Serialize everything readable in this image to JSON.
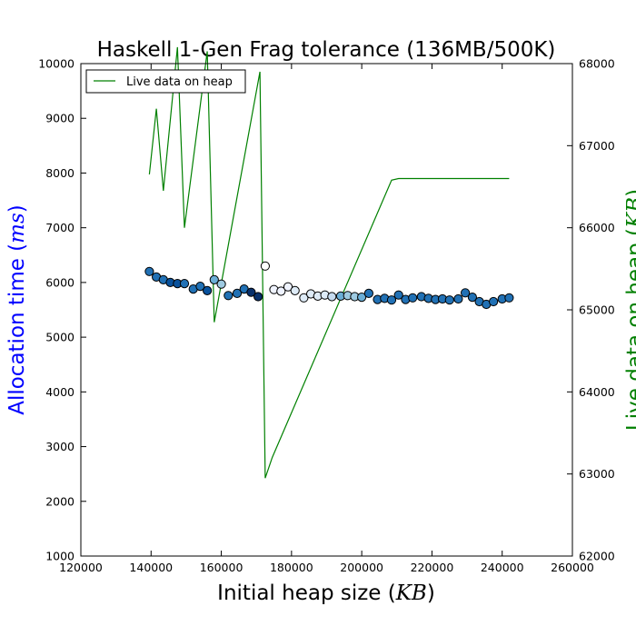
{
  "chart_data": {
    "type": "scatter",
    "title": "Haskell 1-Gen Frag tolerance (136MB/500K)",
    "xlabel": {
      "text": "Initial heap size (",
      "unit": "KB",
      "close": ")"
    },
    "ylabel_left": {
      "text": "Allocation time (",
      "unit": "ms",
      "close": ")",
      "color": "#0000ff"
    },
    "ylabel_right": {
      "text": "Live data on heap (",
      "unit": "KB",
      "close": ")",
      "color": "#007f00"
    },
    "xlim": [
      120000,
      260000
    ],
    "ylim_left": [
      1000,
      10000
    ],
    "ylim_right": [
      62000,
      68000
    ],
    "x_ticks": [
      120000,
      140000,
      160000,
      180000,
      200000,
      220000,
      240000,
      260000
    ],
    "x_tick_labels": [
      "120000",
      "140000",
      "160000",
      "180000",
      "200000",
      "220000",
      "240000",
      "260000"
    ],
    "y_left_ticks": [
      1000,
      2000,
      3000,
      4000,
      5000,
      6000,
      7000,
      8000,
      9000,
      10000
    ],
    "y_left_tick_labels": [
      "1000",
      "2000",
      "3000",
      "4000",
      "5000",
      "6000",
      "7000",
      "8000",
      "9000",
      "10000"
    ],
    "y_right_ticks": [
      62000,
      63000,
      64000,
      65000,
      66000,
      67000,
      68000
    ],
    "y_right_tick_labels": [
      "62000",
      "63000",
      "64000",
      "65000",
      "66000",
      "67000",
      "68000"
    ],
    "grid": false,
    "legend": {
      "position": "top-left",
      "entries": [
        "Live data on heap"
      ]
    },
    "line_color": "#008000",
    "scatter_series": {
      "axis": "left",
      "points": [
        {
          "x": 139500,
          "y": 6200,
          "color": "#2171b5"
        },
        {
          "x": 141500,
          "y": 6100,
          "color": "#2171b5"
        },
        {
          "x": 143500,
          "y": 6050,
          "color": "#2171b5"
        },
        {
          "x": 145500,
          "y": 6000,
          "color": "#08519c"
        },
        {
          "x": 147500,
          "y": 5980,
          "color": "#08519c"
        },
        {
          "x": 149500,
          "y": 5980,
          "color": "#2171b5"
        },
        {
          "x": 152000,
          "y": 5880,
          "color": "#2171b5"
        },
        {
          "x": 154000,
          "y": 5930,
          "color": "#2171b5"
        },
        {
          "x": 156000,
          "y": 5850,
          "color": "#08519c"
        },
        {
          "x": 158000,
          "y": 6050,
          "color": "#6baed6"
        },
        {
          "x": 160000,
          "y": 5970,
          "color": "#9ecae1"
        },
        {
          "x": 162000,
          "y": 5760,
          "color": "#2171b5"
        },
        {
          "x": 164500,
          "y": 5800,
          "color": "#2171b5"
        },
        {
          "x": 166500,
          "y": 5880,
          "color": "#2171b5"
        },
        {
          "x": 168500,
          "y": 5820,
          "color": "#08306b"
        },
        {
          "x": 170500,
          "y": 5740,
          "color": "#08306b"
        },
        {
          "x": 172500,
          "y": 6300,
          "color": "#ffffff"
        },
        {
          "x": 175000,
          "y": 5870,
          "color": "#eff3ff"
        },
        {
          "x": 177000,
          "y": 5840,
          "color": "#eff3ff"
        },
        {
          "x": 179000,
          "y": 5920,
          "color": "#eff3ff"
        },
        {
          "x": 181000,
          "y": 5850,
          "color": "#deebf7"
        },
        {
          "x": 183500,
          "y": 5720,
          "color": "#deebf7"
        },
        {
          "x": 185500,
          "y": 5790,
          "color": "#deebf7"
        },
        {
          "x": 187500,
          "y": 5750,
          "color": "#deebf7"
        },
        {
          "x": 189500,
          "y": 5770,
          "color": "#deebf7"
        },
        {
          "x": 191500,
          "y": 5740,
          "color": "#c6dbef"
        },
        {
          "x": 194000,
          "y": 5750,
          "color": "#6baed6"
        },
        {
          "x": 196000,
          "y": 5760,
          "color": "#9ecae1"
        },
        {
          "x": 198000,
          "y": 5740,
          "color": "#9ecae1"
        },
        {
          "x": 200000,
          "y": 5730,
          "color": "#6baed6"
        },
        {
          "x": 202000,
          "y": 5800,
          "color": "#2171b5"
        },
        {
          "x": 204500,
          "y": 5690,
          "color": "#2171b5"
        },
        {
          "x": 206500,
          "y": 5710,
          "color": "#2171b5"
        },
        {
          "x": 208500,
          "y": 5680,
          "color": "#2171b5"
        },
        {
          "x": 210500,
          "y": 5770,
          "color": "#2171b5"
        },
        {
          "x": 212500,
          "y": 5690,
          "color": "#2171b5"
        },
        {
          "x": 214500,
          "y": 5720,
          "color": "#2171b5"
        },
        {
          "x": 217000,
          "y": 5740,
          "color": "#2171b5"
        },
        {
          "x": 219000,
          "y": 5710,
          "color": "#2171b5"
        },
        {
          "x": 221000,
          "y": 5690,
          "color": "#2171b5"
        },
        {
          "x": 223000,
          "y": 5700,
          "color": "#2171b5"
        },
        {
          "x": 225000,
          "y": 5680,
          "color": "#2171b5"
        },
        {
          "x": 227500,
          "y": 5700,
          "color": "#2171b5"
        },
        {
          "x": 229500,
          "y": 5810,
          "color": "#2171b5"
        },
        {
          "x": 231500,
          "y": 5730,
          "color": "#2171b5"
        },
        {
          "x": 233500,
          "y": 5650,
          "color": "#2171b5"
        },
        {
          "x": 235500,
          "y": 5600,
          "color": "#2171b5"
        },
        {
          "x": 237500,
          "y": 5650,
          "color": "#2171b5"
        },
        {
          "x": 240000,
          "y": 5700,
          "color": "#2171b5"
        },
        {
          "x": 242000,
          "y": 5720,
          "color": "#2171b5"
        }
      ]
    },
    "line_series": {
      "name": "Live data on heap",
      "axis": "right",
      "points": [
        [
          139500,
          66650
        ],
        [
          141500,
          67450
        ],
        [
          143500,
          66450
        ],
        [
          147500,
          68200
        ],
        [
          149500,
          66000
        ],
        [
          156000,
          68150
        ],
        [
          158000,
          64850
        ],
        [
          171000,
          67900
        ],
        [
          172500,
          62950
        ],
        [
          174500,
          63200
        ],
        [
          208500,
          66580
        ],
        [
          210500,
          66600
        ],
        [
          242000,
          66600
        ]
      ]
    }
  }
}
